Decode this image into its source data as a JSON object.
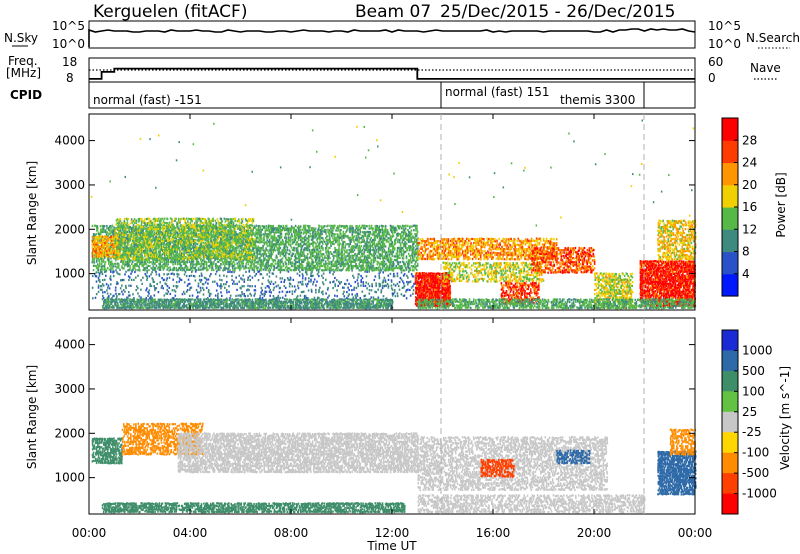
{
  "header": {
    "station": "Kerguelen (fitACF)",
    "beam": "Beam 07",
    "date_range": "25/Dec/2015 - 26/Dec/2015"
  },
  "nsky_panel": {
    "left_label": "N.Sky",
    "right_label": "N.Search",
    "left_ticks": [
      "10^5",
      "10^0"
    ],
    "right_ticks": [
      "10^5",
      "10^0"
    ]
  },
  "freq_panel": {
    "left_label_top": "Freq.",
    "left_label_unit": "[MHz]",
    "right_label": "Nave",
    "left_ticks": [
      "18",
      "8"
    ],
    "right_ticks": [
      "60",
      "0"
    ],
    "freq_steps": [
      {
        "t": 0.0,
        "v": 9.3
      },
      {
        "t": 0.5,
        "v": 12.2
      },
      {
        "t": 1.0,
        "v": 13.6
      },
      {
        "t": 13.0,
        "v": 9.3
      },
      {
        "t": 24.0,
        "v": 9.3
      }
    ],
    "nave_level": 13.0
  },
  "cpid_panel": {
    "label": "CPID",
    "segments": [
      {
        "start": 0,
        "end": 13.9,
        "text": "normal (fast) -151"
      },
      {
        "start": 13.9,
        "end": 22.0,
        "text": "normal (fast) 151"
      },
      {
        "start": 22.0,
        "end": 24.0,
        "text": ""
      }
    ],
    "extra_label": "themis 3300"
  },
  "power_panel": {
    "ylabel": "Slant Range [km]",
    "yticks": [
      "1000",
      "2000",
      "3000",
      "4000"
    ],
    "colorbar_label": "Power [dB]",
    "colorbar_ticks": [
      "4",
      "8",
      "12",
      "16",
      "20",
      "24",
      "28"
    ],
    "colorbar_colors": [
      "#0018ff",
      "#2a52c8",
      "#3f8a7e",
      "#56b847",
      "#f0d000",
      "#ff9600",
      "#ff3c00",
      "#ff0000"
    ]
  },
  "velocity_panel": {
    "ylabel": "Slant Range [km]",
    "yticks": [
      "1000",
      "2000",
      "3000",
      "4000"
    ],
    "colorbar_label": "Velocity [m s^-1]",
    "colorbar_ticks": [
      "1000",
      "500",
      "100",
      "25",
      "-25",
      "-100",
      "-500",
      "-1000"
    ],
    "colorbar_colors": [
      "#1a2bd6",
      "#2e6aa8",
      "#3f8e6a",
      "#63c241",
      "#c7c7c7",
      "#ffd700",
      "#ff8c00",
      "#ff4000",
      "#ff0000"
    ]
  },
  "xaxis": {
    "ticks": [
      "00:00",
      "04:00",
      "08:00",
      "12:00",
      "16:00",
      "20:00",
      "00:00"
    ],
    "label": "Time UT"
  },
  "chart_data": {
    "type": "heatmap",
    "title": "Kerguelen (fitACF) Beam 07 25/Dec/2015 - 26/Dec/2015",
    "xlabel": "Time UT",
    "ylabel": "Slant Range [km]",
    "xlim": [
      0,
      24
    ],
    "ylim": [
      180,
      4600
    ],
    "x_ticks_hours": [
      0,
      4,
      8,
      12,
      16,
      20,
      24
    ],
    "y_ticks_km": [
      1000,
      2000,
      3000,
      4000
    ],
    "dashed_markers_hours": [
      13.9,
      22.0
    ],
    "power_scale_dB": [
      0,
      30
    ],
    "velocity_scale_ms": [
      -1000,
      1000
    ],
    "power_regions": [
      {
        "t0": 0.1,
        "t1": 13.0,
        "r0": 1050,
        "r1": 2100,
        "level": 12,
        "density": 0.55
      },
      {
        "t0": 0.1,
        "t1": 1.2,
        "r0": 1350,
        "r1": 1850,
        "level": 20,
        "density": 0.7
      },
      {
        "t0": 1.0,
        "t1": 6.5,
        "r0": 1300,
        "r1": 2250,
        "level": 14,
        "density": 0.5
      },
      {
        "t0": 0.5,
        "t1": 12.0,
        "r0": 200,
        "r1": 420,
        "level": 10,
        "density": 0.8
      },
      {
        "t0": 0.1,
        "t1": 13.0,
        "r0": 420,
        "r1": 1050,
        "level": 8,
        "density": 0.15
      },
      {
        "t0": 12.9,
        "t1": 14.3,
        "r0": 250,
        "r1": 1000,
        "level": 28,
        "density": 0.9
      },
      {
        "t0": 13.0,
        "t1": 18.5,
        "r0": 1300,
        "r1": 1800,
        "level": 20,
        "density": 0.55
      },
      {
        "t0": 14.0,
        "t1": 18.0,
        "r0": 800,
        "r1": 1250,
        "level": 16,
        "density": 0.45
      },
      {
        "t0": 16.3,
        "t1": 17.8,
        "r0": 300,
        "r1": 800,
        "level": 26,
        "density": 0.6
      },
      {
        "t0": 17.5,
        "t1": 20.0,
        "r0": 1000,
        "r1": 1600,
        "level": 24,
        "density": 0.55
      },
      {
        "t0": 20.0,
        "t1": 21.5,
        "r0": 200,
        "r1": 1000,
        "level": 16,
        "density": 0.6
      },
      {
        "t0": 21.8,
        "t1": 24.0,
        "r0": 250,
        "r1": 1300,
        "level": 28,
        "density": 0.85
      },
      {
        "t0": 22.5,
        "t1": 24.0,
        "r0": 1300,
        "r1": 2200,
        "level": 18,
        "density": 0.55
      },
      {
        "t0": 13.0,
        "t1": 24.0,
        "r0": 200,
        "r1": 420,
        "level": 12,
        "density": 0.6
      }
    ],
    "velocity_regions": [
      {
        "t0": 0.1,
        "t1": 1.3,
        "r0": 1300,
        "r1": 1900,
        "level": 100,
        "density": 0.7
      },
      {
        "t0": 1.3,
        "t1": 4.5,
        "r0": 1500,
        "r1": 2200,
        "level": -100,
        "density": 0.55
      },
      {
        "t0": 3.5,
        "t1": 13.0,
        "r0": 1100,
        "r1": 2000,
        "level": 0,
        "density": 0.65
      },
      {
        "t0": 0.5,
        "t1": 12.5,
        "r0": 200,
        "r1": 420,
        "level": 100,
        "density": 0.7
      },
      {
        "t0": 13.0,
        "t1": 20.5,
        "r0": 700,
        "r1": 1900,
        "level": 0,
        "density": 0.5
      },
      {
        "t0": 15.5,
        "t1": 16.8,
        "r0": 1000,
        "r1": 1400,
        "level": -300,
        "density": 0.6
      },
      {
        "t0": 18.5,
        "t1": 19.8,
        "r0": 1300,
        "r1": 1600,
        "level": 400,
        "density": 0.5
      },
      {
        "t0": 22.5,
        "t1": 24.0,
        "r0": 600,
        "r1": 1600,
        "level": 500,
        "density": 0.8
      },
      {
        "t0": 23.0,
        "t1": 24.0,
        "r0": 1500,
        "r1": 2100,
        "level": -100,
        "density": 0.55
      },
      {
        "t0": 13.0,
        "t1": 22.0,
        "r0": 200,
        "r1": 600,
        "level": 0,
        "density": 0.5
      }
    ]
  }
}
